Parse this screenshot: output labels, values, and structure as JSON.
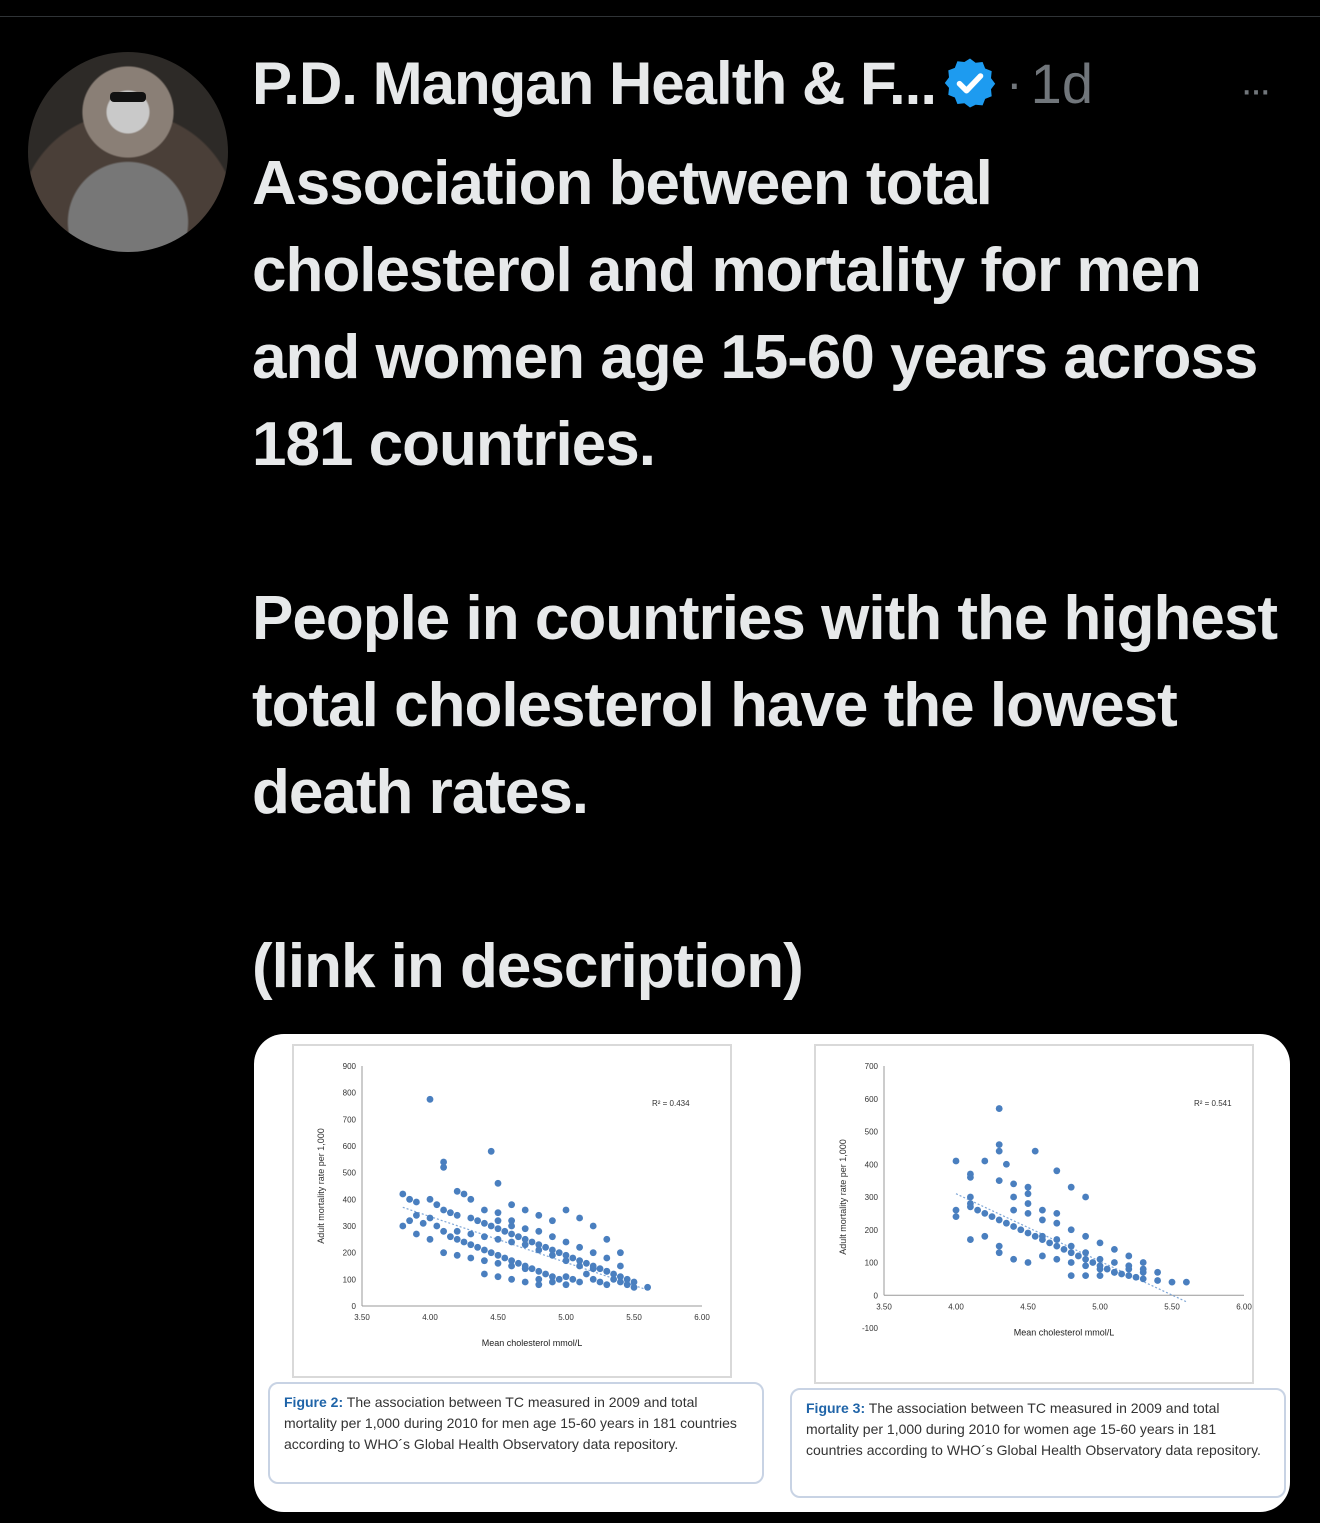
{
  "post": {
    "author_name": "P.D. Mangan Health & F...",
    "time": "1d",
    "separator": "·",
    "more_label": "···",
    "text_lines": [
      "Association between total cholesterol and mortality for men and women age 15-60 years across 181 countries.",
      "People in countries with the highest total cholesterol have the lowest death rates.",
      "(link in description)"
    ]
  },
  "icons": {
    "verified": "verified-badge-icon",
    "more": "more-options-icon"
  },
  "colors": {
    "background": "#000000",
    "text": "#e7e9ea",
    "muted": "#71767b",
    "verified": "#1d9bf0",
    "point": "#4a7fbf",
    "caption_fig": "#1f64a8"
  },
  "figures": [
    {
      "caption_label": "Figure 2:",
      "caption_text": " The association between TC measured in 2009 and total mortality per 1,000 during 2010 for men age 15-60 years in 181 countries according to WHO´s Global Health Observatory data repository."
    },
    {
      "caption_label": "Figure 3:",
      "caption_text": " The association between TC measured in 2009 and total mortality per 1,000 during 2010 for women age 15-60 years in 181 countries according to WHO´s Global Health Observatory data repository."
    }
  ],
  "chart_data": [
    {
      "type": "scatter",
      "xlabel": "Mean cholesterol mmol/L",
      "ylabel": "Adult mortality rate per 1,000",
      "xlim": [
        3.5,
        6.0
      ],
      "ylim": [
        0,
        900
      ],
      "xticks": [
        "3.50",
        "4.00",
        "4.50",
        "5.00",
        "5.50",
        "6.00"
      ],
      "yticks": [
        "0",
        "100",
        "200",
        "300",
        "400",
        "500",
        "600",
        "700",
        "800",
        "900"
      ],
      "annotation": "R² = 0.434",
      "trendline": [
        [
          3.8,
          370
        ],
        [
          5.6,
          60
        ]
      ],
      "points": [
        [
          4.0,
          775
        ],
        [
          4.45,
          580
        ],
        [
          4.1,
          540
        ],
        [
          4.1,
          520
        ],
        [
          4.2,
          430
        ],
        [
          4.25,
          420
        ],
        [
          4.5,
          460
        ],
        [
          3.8,
          420
        ],
        [
          3.85,
          400
        ],
        [
          3.9,
          390
        ],
        [
          4.0,
          400
        ],
        [
          4.05,
          380
        ],
        [
          4.1,
          360
        ],
        [
          4.15,
          350
        ],
        [
          4.2,
          340
        ],
        [
          4.3,
          330
        ],
        [
          4.35,
          320
        ],
        [
          4.4,
          310
        ],
        [
          4.45,
          300
        ],
        [
          4.5,
          290
        ],
        [
          4.55,
          280
        ],
        [
          4.6,
          270
        ],
        [
          4.65,
          260
        ],
        [
          4.7,
          250
        ],
        [
          4.75,
          240
        ],
        [
          4.8,
          230
        ],
        [
          4.85,
          220
        ],
        [
          4.9,
          210
        ],
        [
          4.95,
          200
        ],
        [
          5.0,
          190
        ],
        [
          5.05,
          180
        ],
        [
          5.1,
          170
        ],
        [
          5.15,
          160
        ],
        [
          5.2,
          150
        ],
        [
          5.25,
          140
        ],
        [
          5.3,
          130
        ],
        [
          5.35,
          120
        ],
        [
          5.4,
          110
        ],
        [
          5.45,
          100
        ],
        [
          5.5,
          90
        ],
        [
          5.6,
          70
        ],
        [
          3.8,
          300
        ],
        [
          3.85,
          320
        ],
        [
          3.9,
          340
        ],
        [
          3.95,
          310
        ],
        [
          4.0,
          330
        ],
        [
          4.05,
          300
        ],
        [
          4.1,
          280
        ],
        [
          4.15,
          260
        ],
        [
          4.2,
          250
        ],
        [
          4.25,
          240
        ],
        [
          4.3,
          230
        ],
        [
          4.35,
          220
        ],
        [
          4.4,
          210
        ],
        [
          4.45,
          200
        ],
        [
          4.5,
          190
        ],
        [
          4.55,
          180
        ],
        [
          4.6,
          170
        ],
        [
          4.65,
          160
        ],
        [
          4.7,
          150
        ],
        [
          4.75,
          140
        ],
        [
          4.8,
          130
        ],
        [
          4.85,
          120
        ],
        [
          4.9,
          110
        ],
        [
          4.95,
          100
        ],
        [
          5.0,
          110
        ],
        [
          5.05,
          100
        ],
        [
          5.1,
          90
        ],
        [
          5.15,
          120
        ],
        [
          5.2,
          100
        ],
        [
          5.25,
          90
        ],
        [
          5.3,
          80
        ],
        [
          5.35,
          100
        ],
        [
          5.4,
          90
        ],
        [
          5.45,
          80
        ],
        [
          5.5,
          70
        ],
        [
          4.1,
          200
        ],
        [
          4.2,
          190
        ],
        [
          4.3,
          180
        ],
        [
          4.4,
          170
        ],
        [
          4.5,
          160
        ],
        [
          4.6,
          150
        ],
        [
          4.7,
          140
        ],
        [
          4.8,
          100
        ],
        [
          4.9,
          90
        ],
        [
          5.0,
          80
        ],
        [
          4.4,
          120
        ],
        [
          4.5,
          110
        ],
        [
          4.6,
          100
        ],
        [
          4.7,
          90
        ],
        [
          4.8,
          80
        ],
        [
          4.6,
          380
        ],
        [
          4.7,
          360
        ],
        [
          4.8,
          340
        ],
        [
          4.9,
          320
        ],
        [
          5.0,
          360
        ],
        [
          5.1,
          330
        ],
        [
          5.2,
          300
        ],
        [
          5.3,
          250
        ],
        [
          5.4,
          200
        ],
        [
          4.3,
          400
        ],
        [
          4.4,
          360
        ],
        [
          4.5,
          350
        ],
        [
          4.6,
          320
        ],
        [
          3.9,
          270
        ],
        [
          4.0,
          250
        ],
        [
          4.2,
          280
        ],
        [
          4.3,
          270
        ],
        [
          4.4,
          260
        ],
        [
          4.5,
          250
        ],
        [
          4.6,
          240
        ],
        [
          4.7,
          230
        ],
        [
          4.8,
          210
        ],
        [
          4.9,
          190
        ],
        [
          5.0,
          170
        ],
        [
          5.1,
          150
        ],
        [
          5.2,
          140
        ],
        [
          5.3,
          130
        ],
        [
          4.5,
          320
        ],
        [
          4.6,
          300
        ],
        [
          4.7,
          290
        ],
        [
          4.8,
          280
        ],
        [
          4.9,
          260
        ],
        [
          5.0,
          240
        ],
        [
          5.1,
          220
        ],
        [
          5.2,
          200
        ],
        [
          5.3,
          180
        ],
        [
          5.4,
          150
        ]
      ]
    },
    {
      "type": "scatter",
      "xlabel": "Mean cholesterol mmol/L",
      "ylabel": "Adult mortality rate per 1,000",
      "xlim": [
        3.5,
        6.0
      ],
      "ylim": [
        -100,
        700
      ],
      "xticks": [
        "3.50",
        "4.00",
        "4.50",
        "5.00",
        "5.50",
        "6.00"
      ],
      "yticks": [
        "-100",
        "0",
        "100",
        "200",
        "300",
        "400",
        "500",
        "600",
        "700"
      ],
      "annotation": "R² = 0.541",
      "trendline": [
        [
          4.0,
          310
        ],
        [
          5.6,
          -20
        ]
      ],
      "points": [
        [
          4.3,
          570
        ],
        [
          4.3,
          460
        ],
        [
          4.3,
          440
        ],
        [
          4.55,
          440
        ],
        [
          4.2,
          410
        ],
        [
          4.0,
          410
        ],
        [
          4.35,
          400
        ],
        [
          4.1,
          370
        ],
        [
          4.1,
          360
        ],
        [
          4.3,
          350
        ],
        [
          4.4,
          340
        ],
        [
          4.5,
          330
        ],
        [
          4.7,
          380
        ],
        [
          4.8,
          330
        ],
        [
          4.9,
          300
        ],
        [
          4.0,
          260
        ],
        [
          4.0,
          240
        ],
        [
          4.1,
          300
        ],
        [
          4.1,
          280
        ],
        [
          4.1,
          270
        ],
        [
          4.15,
          260
        ],
        [
          4.2,
          250
        ],
        [
          4.25,
          240
        ],
        [
          4.3,
          230
        ],
        [
          4.35,
          220
        ],
        [
          4.4,
          210
        ],
        [
          4.45,
          200
        ],
        [
          4.5,
          190
        ],
        [
          4.55,
          180
        ],
        [
          4.6,
          170
        ],
        [
          4.65,
          160
        ],
        [
          4.7,
          150
        ],
        [
          4.75,
          140
        ],
        [
          4.8,
          130
        ],
        [
          4.85,
          120
        ],
        [
          4.9,
          110
        ],
        [
          4.95,
          100
        ],
        [
          5.0,
          90
        ],
        [
          5.05,
          80
        ],
        [
          5.1,
          70
        ],
        [
          5.15,
          65
        ],
        [
          5.2,
          60
        ],
        [
          5.25,
          55
        ],
        [
          5.3,
          50
        ],
        [
          5.4,
          45
        ],
        [
          5.5,
          40
        ],
        [
          5.6,
          40
        ],
        [
          4.1,
          170
        ],
        [
          4.2,
          180
        ],
        [
          4.3,
          150
        ],
        [
          4.3,
          130
        ],
        [
          4.4,
          110
        ],
        [
          4.5,
          100
        ],
        [
          4.6,
          120
        ],
        [
          4.7,
          110
        ],
        [
          4.8,
          100
        ],
        [
          4.9,
          90
        ],
        [
          5.0,
          80
        ],
        [
          5.1,
          70
        ],
        [
          4.4,
          260
        ],
        [
          4.5,
          250
        ],
        [
          4.6,
          230
        ],
        [
          4.7,
          220
        ],
        [
          4.8,
          200
        ],
        [
          4.9,
          180
        ],
        [
          5.0,
          160
        ],
        [
          5.1,
          140
        ],
        [
          5.2,
          120
        ],
        [
          5.3,
          100
        ],
        [
          4.6,
          180
        ],
        [
          4.7,
          170
        ],
        [
          4.8,
          150
        ],
        [
          4.9,
          130
        ],
        [
          5.0,
          110
        ],
        [
          5.1,
          100
        ],
        [
          5.2,
          90
        ],
        [
          5.3,
          80
        ],
        [
          5.4,
          70
        ],
        [
          4.5,
          280
        ],
        [
          4.6,
          260
        ],
        [
          4.7,
          250
        ],
        [
          4.8,
          60
        ],
        [
          4.9,
          60
        ],
        [
          5.0,
          60
        ],
        [
          5.2,
          80
        ],
        [
          5.3,
          70
        ],
        [
          4.4,
          300
        ],
        [
          4.5,
          310
        ]
      ]
    }
  ]
}
